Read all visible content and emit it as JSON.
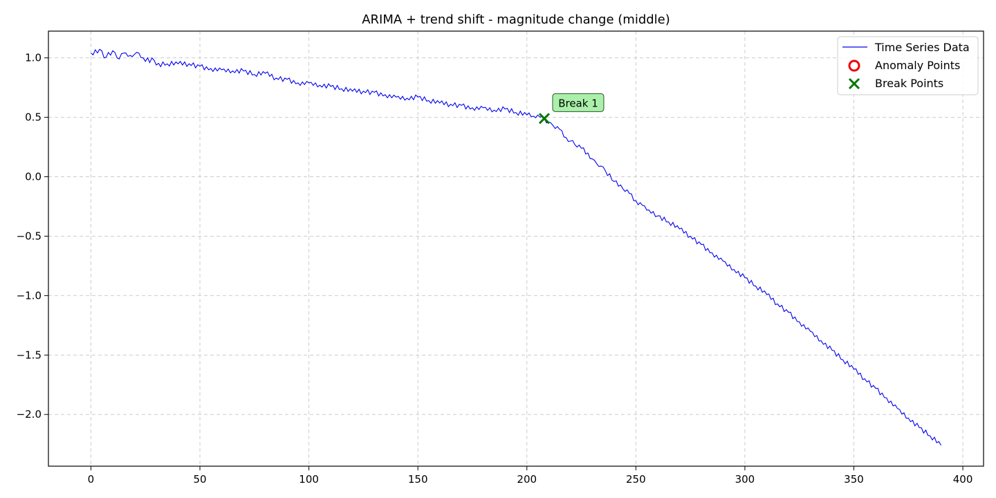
{
  "chart_data": {
    "type": "line",
    "title": "ARIMA + trend shift - magnitude change (middle)",
    "xlabel": "",
    "ylabel": "",
    "xlim": [
      -19.5,
      409.5
    ],
    "ylim": [
      -2.435,
      1.225
    ],
    "xticks": [
      0,
      50,
      100,
      150,
      200,
      250,
      300,
      350,
      400
    ],
    "xtick_labels": [
      "0",
      "50",
      "100",
      "150",
      "200",
      "250",
      "300",
      "350",
      "400"
    ],
    "yticks": [
      1.0,
      0.5,
      0.0,
      -0.5,
      -1.0,
      -1.5,
      -2.0
    ],
    "ytick_labels": [
      "1.0",
      "0.5",
      "0.0",
      "−0.5",
      "−1.0",
      "−1.5",
      "−2.0"
    ],
    "grid": true,
    "legend_position": "top-right",
    "series": [
      {
        "name": "Time Series Data",
        "color": "#0000ee",
        "x": [
          0,
          5,
          6,
          10,
          12,
          15,
          18,
          20,
          22,
          24,
          25,
          26,
          27,
          28,
          29,
          30,
          35,
          40,
          45,
          50,
          55,
          60,
          65,
          70,
          75,
          80,
          85,
          90,
          95,
          100,
          105,
          110,
          115,
          120,
          125,
          130,
          135,
          140,
          145,
          150,
          155,
          160,
          165,
          170,
          175,
          180,
          185,
          190,
          195,
          200,
          203,
          206,
          208,
          210,
          212,
          215,
          218,
          220,
          222,
          225,
          228,
          230,
          232,
          234,
          236,
          240,
          244,
          247,
          250,
          253,
          256,
          260,
          265,
          270,
          275,
          280,
          285,
          290,
          295,
          300,
          305,
          310,
          315,
          320,
          325,
          330,
          335,
          340,
          345,
          350,
          355,
          360,
          365,
          370,
          375,
          380,
          385,
          390
        ],
        "y": [
          1.04,
          1.06,
          1.0,
          1.06,
          1.0,
          1.04,
          1.02,
          1.03,
          1.04,
          1.0,
          0.97,
          1.0,
          0.96,
          1.0,
          0.98,
          0.94,
          0.95,
          0.95,
          0.95,
          0.93,
          0.91,
          0.9,
          0.89,
          0.89,
          0.86,
          0.87,
          0.83,
          0.82,
          0.79,
          0.79,
          0.77,
          0.76,
          0.74,
          0.72,
          0.72,
          0.71,
          0.69,
          0.67,
          0.66,
          0.67,
          0.64,
          0.62,
          0.61,
          0.6,
          0.58,
          0.58,
          0.56,
          0.57,
          0.54,
          0.52,
          0.51,
          0.5,
          0.49,
          0.46,
          0.43,
          0.4,
          0.33,
          0.3,
          0.27,
          0.24,
          0.2,
          0.15,
          0.11,
          0.09,
          0.05,
          -0.04,
          -0.1,
          -0.14,
          -0.2,
          -0.24,
          -0.28,
          -0.33,
          -0.38,
          -0.44,
          -0.5,
          -0.57,
          -0.64,
          -0.71,
          -0.78,
          -0.85,
          -0.92,
          -0.99,
          -1.07,
          -1.14,
          -1.22,
          -1.3,
          -1.38,
          -1.46,
          -1.54,
          -1.62,
          -1.7,
          -1.78,
          -1.86,
          -1.95,
          -2.03,
          -2.11,
          -2.18,
          -2.26
        ]
      }
    ],
    "anomaly_points": {
      "name": "Anomaly Points",
      "color": "#ee0000",
      "x": [],
      "y": []
    },
    "break_points": {
      "name": "Break Points",
      "color": "#007700",
      "x": [
        208
      ],
      "y": [
        0.49
      ],
      "labels": [
        "Break 1"
      ]
    }
  }
}
